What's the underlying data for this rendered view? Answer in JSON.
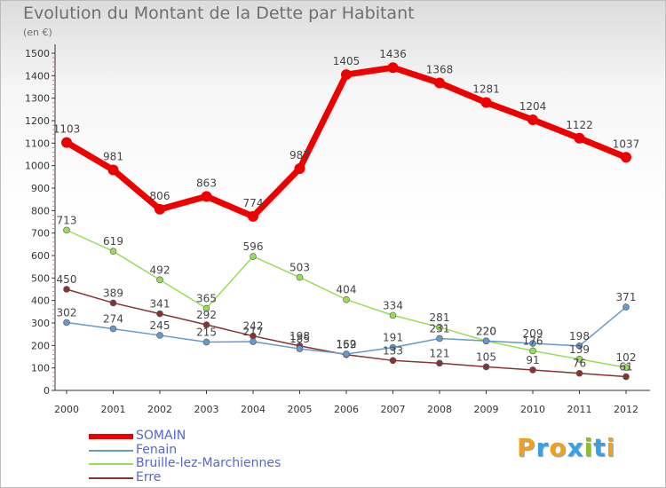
{
  "title": "Evolution du Montant de la Dette par Habitant",
  "subtitle": "(en €)",
  "logo": {
    "text": "Proxiti",
    "letters": [
      {
        "ch": "P",
        "color": "#f0a020"
      },
      {
        "ch": "r",
        "color": "#3aa0e0"
      },
      {
        "ch": "o",
        "color": "#f0a020"
      },
      {
        "ch": "x",
        "color": "#3aa0e0"
      },
      {
        "ch": "i",
        "color": "#88c030"
      },
      {
        "ch": "t",
        "color": "#3aa0e0"
      },
      {
        "ch": "i",
        "color": "#f0a020"
      }
    ]
  },
  "chart_data": {
    "type": "line",
    "title": "Evolution du Montant de la Dette par Habitant",
    "subtitle": "(en €)",
    "categories": [
      "2000",
      "2001",
      "2002",
      "2003",
      "2004",
      "2005",
      "2006",
      "2007",
      "2008",
      "2009",
      "2010",
      "2011",
      "2012"
    ],
    "ylim": [
      0,
      1500
    ],
    "yticks": [
      0,
      100,
      200,
      300,
      400,
      500,
      600,
      700,
      800,
      900,
      1000,
      1100,
      1200,
      1300,
      1400,
      1500
    ],
    "grid": false,
    "legend_position": "bottom-left",
    "series": [
      {
        "name": "SOMAIN",
        "color": "#ee0000",
        "width": 7,
        "marker": 6,
        "values": [
          1103,
          981,
          806,
          863,
          774,
          987,
          1405,
          1436,
          1368,
          1281,
          1204,
          1122,
          1037
        ],
        "labels": [
          "1103",
          "981",
          "806",
          "863",
          "774",
          "987",
          "1405",
          "1436",
          "1368",
          "1281",
          "1204",
          "1122",
          "1037"
        ]
      },
      {
        "name": "Fenain",
        "color": "#6699cc",
        "width": 1.5,
        "marker": 3.5,
        "values": [
          302,
          274,
          245,
          215,
          217,
          185,
          162,
          191,
          231,
          220,
          209,
          198,
          371
        ],
        "labels": [
          "302",
          "274",
          "245",
          "215",
          "217",
          "185",
          "162",
          "191",
          "231",
          "220",
          "209",
          "198",
          "371"
        ]
      },
      {
        "name": "Bruille-lez-Marchiennes",
        "color": "#99dd55",
        "width": 1.5,
        "marker": 3.5,
        "values": [
          713,
          619,
          492,
          365,
          596,
          503,
          404,
          334,
          281,
          220,
          176,
          139,
          102
        ],
        "labels": [
          "713",
          "619",
          "492",
          "365",
          "596",
          "503",
          "404",
          "334",
          "281",
          "220",
          "176",
          "139",
          "102"
        ]
      },
      {
        "name": "Erre",
        "color": "#883333",
        "width": 1.5,
        "marker": 3.5,
        "values": [
          450,
          389,
          341,
          292,
          242,
          198,
          159,
          133,
          121,
          105,
          91,
          76,
          61
        ],
        "labels": [
          "450",
          "389",
          "341",
          "292",
          "242",
          "198",
          "159",
          "133",
          "121",
          "105",
          "91",
          "76",
          "61"
        ]
      }
    ]
  }
}
